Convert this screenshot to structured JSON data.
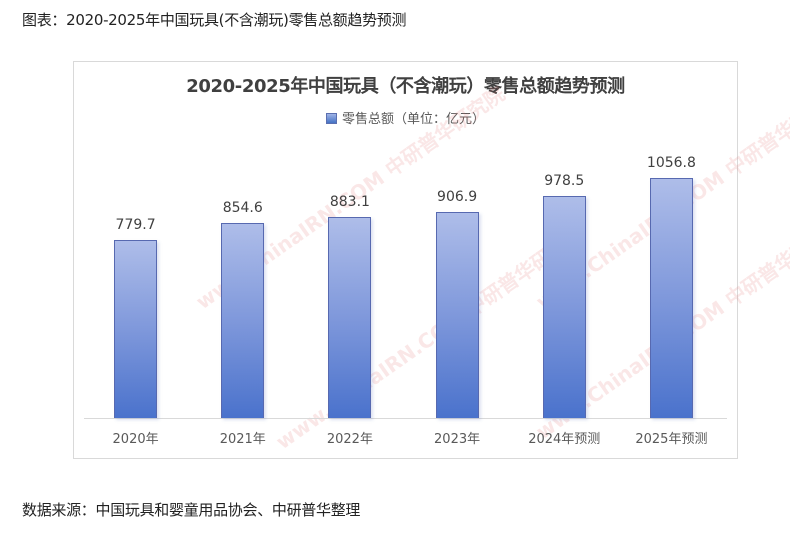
{
  "caption_top": "图表：2020-2025年中国玩具(不含潮玩)零售总额趋势预测",
  "caption_bottom": "数据来源：中国玩具和婴童用品协会、中研普华整理",
  "watermark": "www.ChinaIRN.COM 中研普华研究院",
  "chart": {
    "title": "2020-2025年中国玩具（不含潮玩）零售总额趋势预测",
    "legend_label": "零售总额（单位：亿元）",
    "bars": [
      {
        "category": "2020年",
        "value": "779.7"
      },
      {
        "category": "2021年",
        "value": "854.6"
      },
      {
        "category": "2022年",
        "value": "883.1"
      },
      {
        "category": "2023年",
        "value": "906.9"
      },
      {
        "category": "2024年预测",
        "value": "978.5"
      },
      {
        "category": "2025年预测",
        "value": "1056.8"
      }
    ]
  },
  "chart_data": {
    "type": "bar",
    "title": "2020-2025年中国玩具（不含潮玩）零售总额趋势预测",
    "categories": [
      "2020年",
      "2021年",
      "2022年",
      "2023年",
      "2024年预测",
      "2025年预测"
    ],
    "values": [
      779.7,
      854.6,
      883.1,
      906.9,
      978.5,
      1056.8
    ],
    "series": [
      {
        "name": "零售总额（单位：亿元）",
        "values": [
          779.7,
          854.6,
          883.1,
          906.9,
          978.5,
          1056.8
        ]
      }
    ],
    "xlabel": "",
    "ylabel": "",
    "legend_position": "top",
    "grid": false,
    "colors": {
      "bar_top": "#aebde9",
      "bar_bottom": "#4a72cc",
      "bar_border": "#5769b0"
    }
  }
}
